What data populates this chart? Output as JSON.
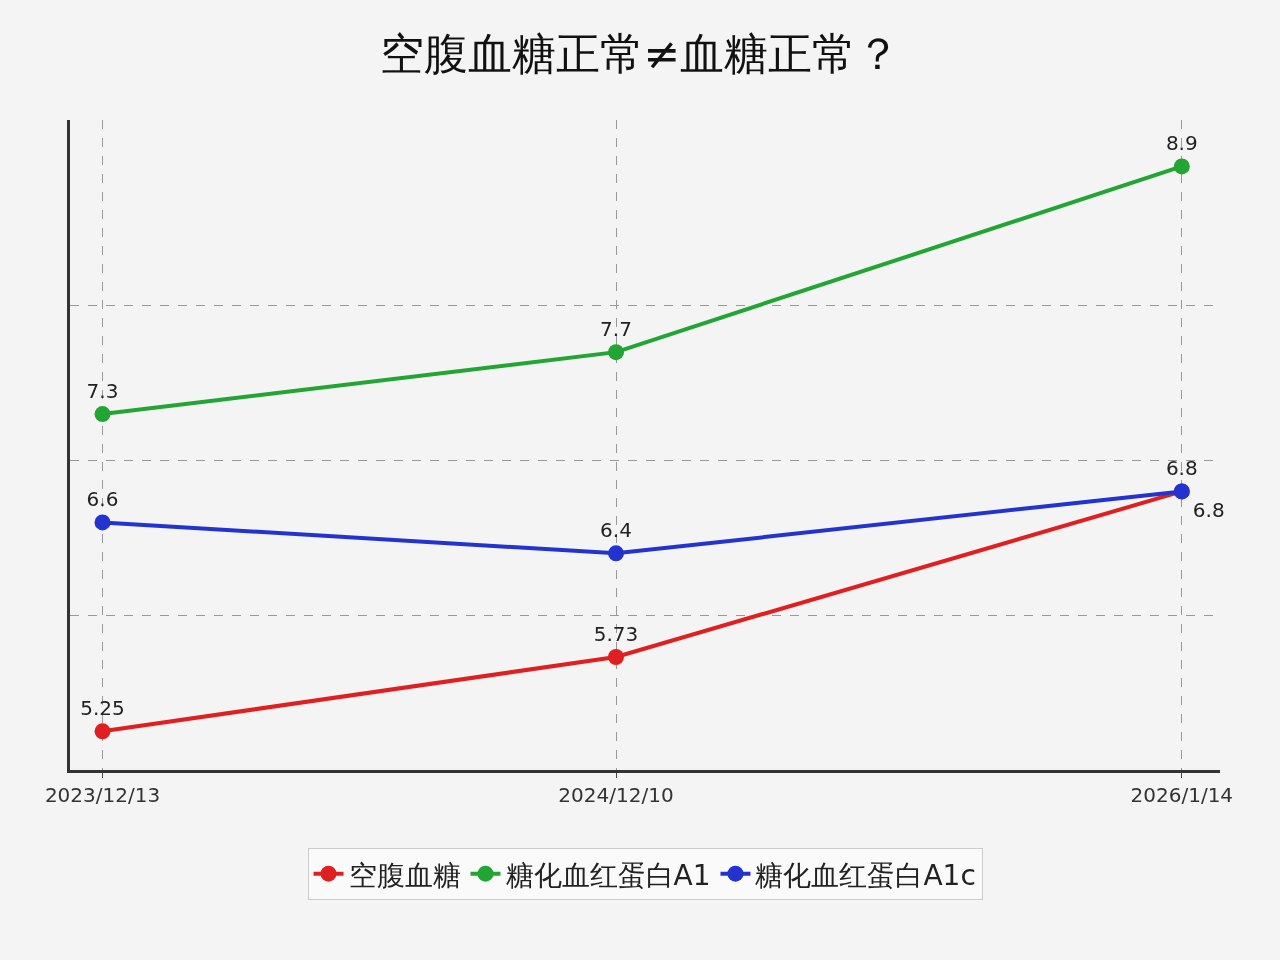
{
  "chart_data": {
    "type": "line",
    "title": "空腹血糖正常≠血糖正常？",
    "x": [
      "2023-12-13",
      "2024-12-10",
      "2026-01-14"
    ],
    "series": [
      {
        "name": "空腹血糖",
        "color": "#e02020",
        "values": [
          5.25,
          5.73,
          6.8
        ]
      },
      {
        "name": "糖化血红蛋白A1",
        "color": "#22a532",
        "values": [
          7.3,
          7.7,
          8.9
        ]
      },
      {
        "name": "糖化血红蛋白A1c",
        "color": "#2233d0",
        "values": [
          6.6,
          6.4,
          6.8
        ]
      }
    ],
    "xlim": [
      "2023-11-20",
      "2026-02-10"
    ],
    "xticks": [
      {
        "value": "2023-12-13",
        "label": "2023/12/13"
      },
      {
        "value": "2024-12-10",
        "label": "2024/12/10"
      },
      {
        "value": "2026-01-14",
        "label": "2026/1/14"
      }
    ],
    "ylim": [
      5,
      9.2
    ],
    "yticks": [
      {
        "value": 6,
        "label": null
      },
      {
        "value": 7,
        "label": null
      },
      {
        "value": 8,
        "label": null
      }
    ],
    "tick_labels": "x",
    "data_labels": true,
    "grid": true,
    "legend": "bottom",
    "marker": "circle",
    "line_style": "solid"
  }
}
